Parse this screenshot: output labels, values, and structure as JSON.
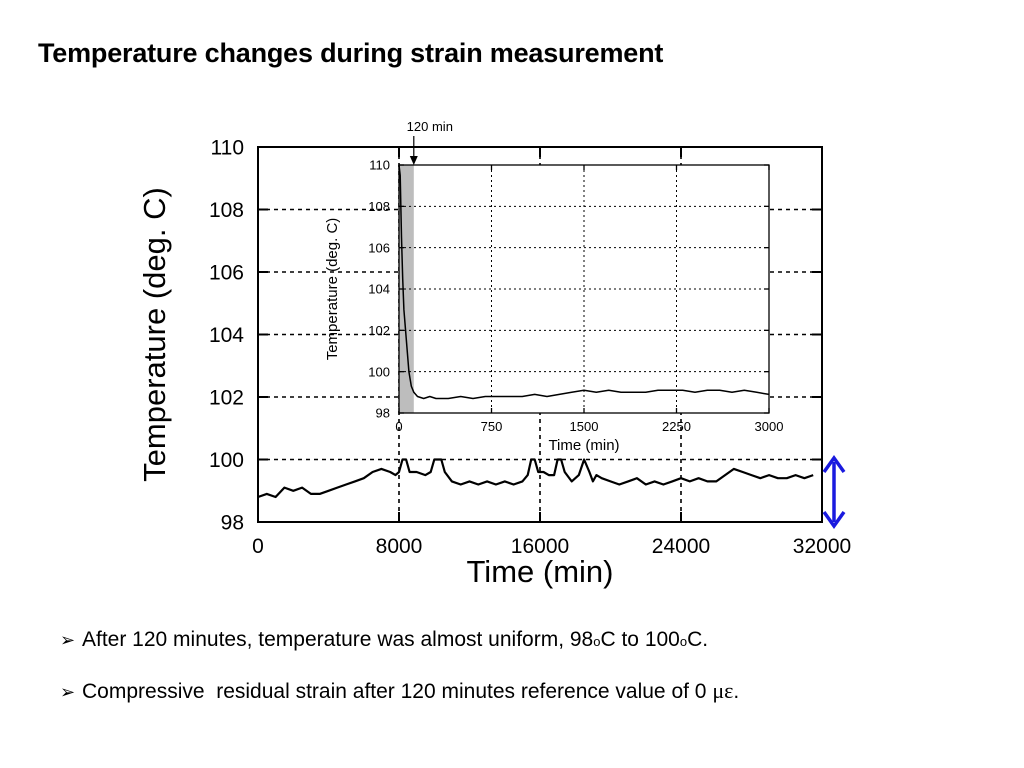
{
  "slide": {
    "title": "Temperature changes during strain measurement"
  },
  "chart_data": [
    {
      "type": "line",
      "name": "main",
      "xlabel": "Time (min)",
      "ylabel": "Temperature (deg. C)",
      "xlim": [
        0,
        32000
      ],
      "ylim": [
        98,
        110
      ],
      "xticks": [
        0,
        8000,
        16000,
        24000,
        32000
      ],
      "yticks": [
        98,
        100,
        102,
        104,
        106,
        108,
        110
      ],
      "grid": "dashed",
      "color": "#000000",
      "series": [
        {
          "x": [
            0,
            500,
            1000,
            1500,
            2000,
            2500,
            3000,
            3500,
            4000,
            4500,
            5000,
            5500,
            6000,
            6500,
            7000,
            7500,
            7800,
            8000,
            8200,
            8400,
            8600,
            9000,
            9500,
            9800,
            10000,
            10200,
            10400,
            10600,
            11000,
            11500,
            12000,
            12500,
            13000,
            13500,
            14000,
            14500,
            15000,
            15300,
            15500,
            15700,
            15900,
            16200,
            16500,
            16800,
            17000,
            17200,
            17400,
            17800,
            18200,
            18500,
            18800,
            19000,
            19200,
            19500,
            20000,
            20500,
            21000,
            21500,
            22000,
            22500,
            23000,
            23500,
            24000,
            24500,
            25000,
            25500,
            26000,
            26500,
            27000,
            27500,
            28000,
            28500,
            29000,
            29500,
            30000,
            30500,
            31000,
            31500
          ],
          "y": [
            98.8,
            98.9,
            98.8,
            99.1,
            99.0,
            99.1,
            98.9,
            98.9,
            99.0,
            99.1,
            99.2,
            99.3,
            99.4,
            99.6,
            99.7,
            99.6,
            99.5,
            99.6,
            100.0,
            100.0,
            99.6,
            99.6,
            99.5,
            99.6,
            100.0,
            100.0,
            100.0,
            99.6,
            99.3,
            99.2,
            99.3,
            99.2,
            99.3,
            99.2,
            99.3,
            99.2,
            99.3,
            99.5,
            100.0,
            100.0,
            99.6,
            99.6,
            99.5,
            99.5,
            100.0,
            100.0,
            99.6,
            99.3,
            99.5,
            100.0,
            99.6,
            99.3,
            99.5,
            99.4,
            99.3,
            99.2,
            99.3,
            99.4,
            99.2,
            99.3,
            99.2,
            99.3,
            99.4,
            99.3,
            99.4,
            99.3,
            99.3,
            99.5,
            99.7,
            99.6,
            99.5,
            99.4,
            99.5,
            99.4,
            99.4,
            99.5,
            99.4,
            99.5
          ]
        }
      ]
    },
    {
      "type": "line",
      "name": "inset",
      "xlabel": "Time (min)",
      "ylabel": "Temperature (deg. C)",
      "xlim": [
        0,
        3000
      ],
      "ylim": [
        98,
        110
      ],
      "xticks": [
        0,
        750,
        1500,
        2250,
        3000
      ],
      "yticks": [
        98,
        100,
        102,
        104,
        106,
        108,
        110
      ],
      "grid": "dotted",
      "shaded_region": [
        0,
        120
      ],
      "annotation": "120 min",
      "annotation_x": 120,
      "series": [
        {
          "x": [
            0,
            10,
            20,
            30,
            40,
            60,
            80,
            100,
            120,
            150,
            200,
            250,
            300,
            400,
            500,
            600,
            700,
            800,
            900,
            1000,
            1100,
            1200,
            1300,
            1400,
            1500,
            1600,
            1700,
            1800,
            1900,
            2000,
            2100,
            2200,
            2300,
            2400,
            2500,
            2600,
            2700,
            2800,
            2900,
            3000
          ],
          "y": [
            110,
            109.5,
            106.5,
            104.5,
            103.0,
            101.5,
            100.0,
            99.3,
            99.0,
            98.8,
            98.7,
            98.8,
            98.7,
            98.7,
            98.8,
            98.7,
            98.8,
            98.8,
            98.8,
            98.8,
            98.9,
            98.8,
            98.9,
            99.0,
            99.1,
            99.0,
            99.1,
            99.0,
            99.0,
            99.0,
            99.1,
            99.1,
            99.1,
            99.0,
            99.1,
            99.1,
            99.0,
            99.1,
            99.0,
            98.9
          ]
        }
      ]
    }
  ],
  "bullets": [
    {
      "icon": "arrow-bullet-icon",
      "parts": [
        "After 120 minutes, temperature was almost uniform, 98",
        "o",
        "C to 100",
        "o",
        "C."
      ]
    },
    {
      "icon": "arrow-bullet-icon",
      "parts": [
        "Compressive  residual strain after 120 minutes reference value of 0 ",
        "με",
        "."
      ]
    }
  ],
  "range_arrow": {
    "color": "#1a1adf"
  }
}
